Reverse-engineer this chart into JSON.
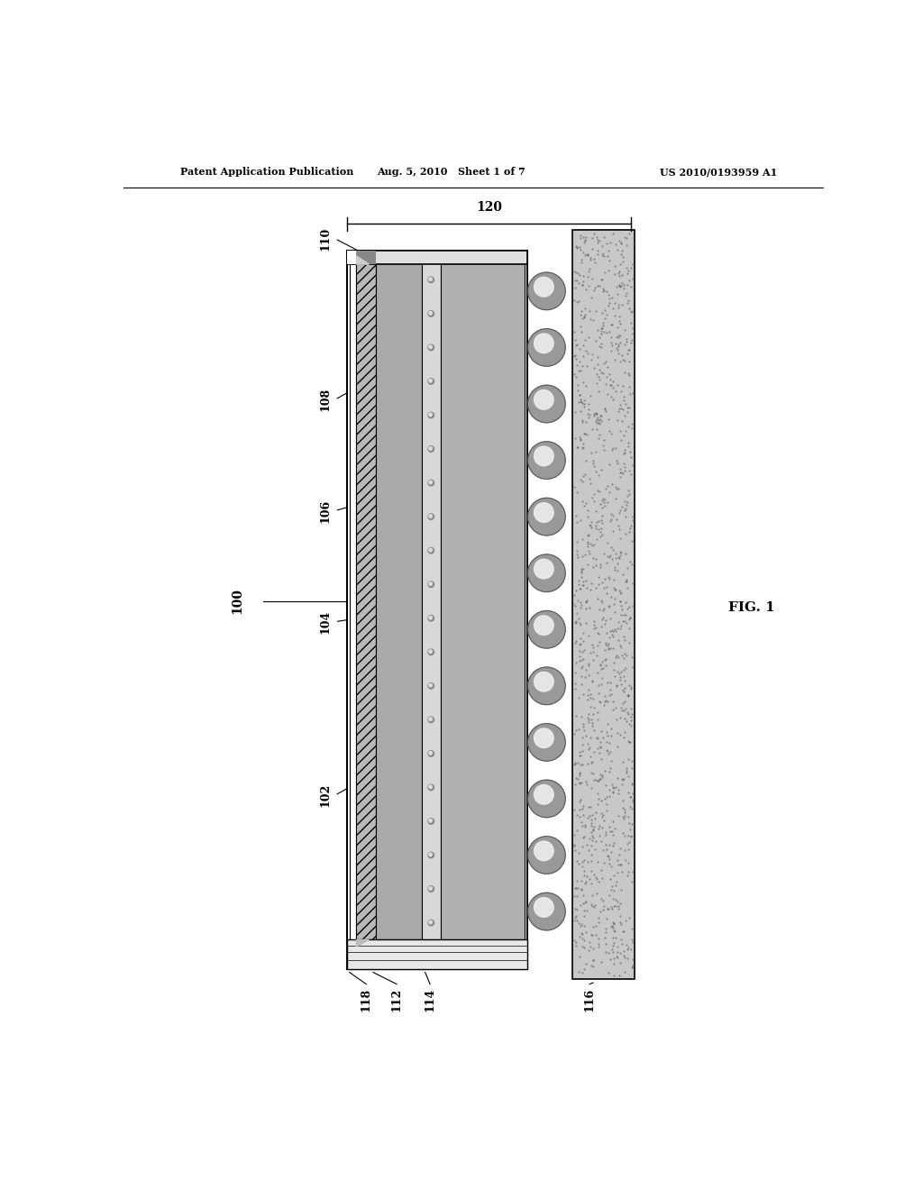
{
  "background_color": "#ffffff",
  "header_left": "Patent Application Publication",
  "header_center": "Aug. 5, 2010   Sheet 1 of 7",
  "header_right": "US 2010/0193959 A1",
  "fig_label": "FIG. 1",
  "device_label": "100",
  "layer_labels": [
    "102",
    "104",
    "106",
    "108",
    "110"
  ],
  "bottom_labels": [
    "118",
    "112",
    "114",
    "116"
  ],
  "brace_label": "120",
  "colors": {
    "outline": "#000000",
    "white_layer": "#ffffff",
    "light_gray": "#cccccc",
    "medium_gray": "#aaaaaa",
    "dark_gray": "#888888",
    "hatched": "#555555",
    "board_gray": "#bbbbbb",
    "ball_light": "#dddddd",
    "ball_dark": "#999999",
    "ball_highlight": "#f5f5f5"
  }
}
